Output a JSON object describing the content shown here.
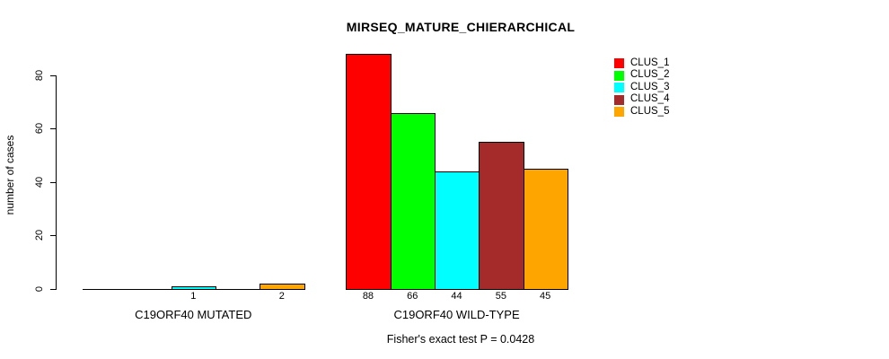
{
  "chart_data": {
    "type": "bar",
    "title": "MIRSEQ_MATURE_CHIERARCHICAL",
    "ylabel": "number of cases",
    "footnote": "Fisher's exact test P = 0.0428",
    "ylim": [
      0,
      88
    ],
    "yticks": [
      0,
      20,
      40,
      60,
      80
    ],
    "grid": false,
    "legend_position": "top-right",
    "series_colors": [
      "#ff0000",
      "#00ff00",
      "#00ffff",
      "#a52a2a",
      "#ffa500"
    ],
    "legend": [
      {
        "label": "CLUS_1",
        "color": "#ff0000"
      },
      {
        "label": "CLUS_2",
        "color": "#00ff00"
      },
      {
        "label": "CLUS_3",
        "color": "#00ffff"
      },
      {
        "label": "CLUS_4",
        "color": "#a52a2a"
      },
      {
        "label": "CLUS_5",
        "color": "#ffa500"
      }
    ],
    "groups": [
      {
        "label": "C19ORF40 MUTATED",
        "values": [
          0,
          0,
          1,
          0,
          2
        ],
        "value_labels": [
          "",
          "",
          "1",
          "",
          "2"
        ]
      },
      {
        "label": "C19ORF40 WILD-TYPE",
        "values": [
          88,
          66,
          44,
          55,
          45
        ],
        "value_labels": [
          "88",
          "66",
          "44",
          "55",
          "45"
        ]
      }
    ]
  }
}
